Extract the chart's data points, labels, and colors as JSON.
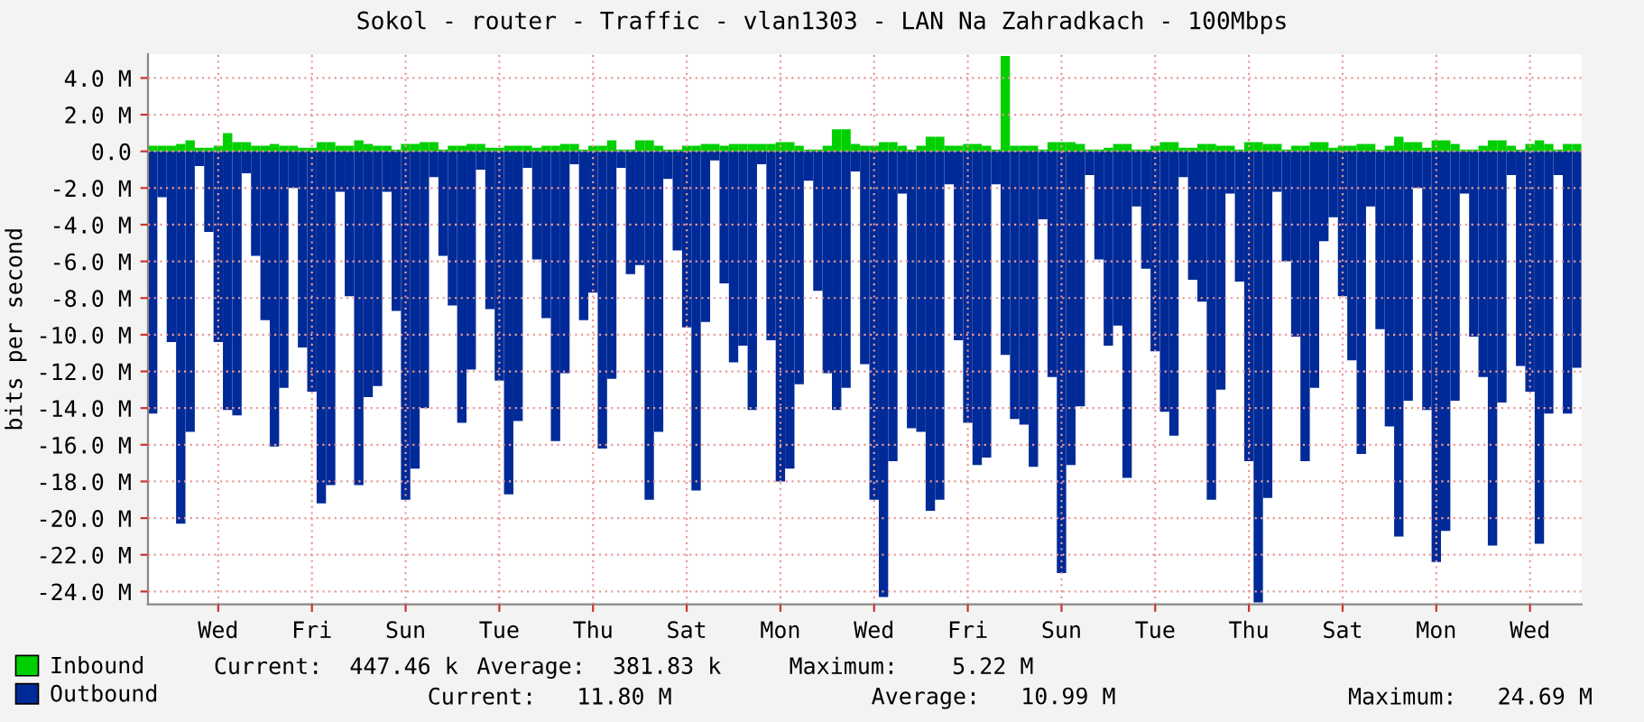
{
  "chart_data": {
    "type": "bar",
    "stacked": true,
    "title": "Sokol - router - Traffic - vlan1303 - LAN Na Zahradkach - 100Mbps",
    "ylabel": "bits per second",
    "categories": [
      null,
      null,
      null,
      null,
      null,
      null,
      null,
      "Wed",
      null,
      null,
      null,
      null,
      null,
      null,
      null,
      null,
      null,
      "Fri",
      null,
      null,
      null,
      null,
      null,
      null,
      null,
      null,
      null,
      "Sun",
      null,
      null,
      null,
      null,
      null,
      null,
      null,
      null,
      null,
      "Tue",
      null,
      null,
      null,
      null,
      null,
      null,
      null,
      null,
      null,
      "Thu",
      null,
      null,
      null,
      null,
      null,
      null,
      null,
      null,
      null,
      "Sat",
      null,
      null,
      null,
      null,
      null,
      null,
      null,
      null,
      null,
      "Mon",
      null,
      null,
      null,
      null,
      null,
      null,
      null,
      null,
      null,
      "Wed",
      null,
      null,
      null,
      null,
      null,
      null,
      null,
      null,
      null,
      "Fri",
      null,
      null,
      null,
      null,
      null,
      null,
      null,
      null,
      null,
      "Sun",
      null,
      null,
      null,
      null,
      null,
      null,
      null,
      null,
      null,
      "Tue",
      null,
      null,
      null,
      null,
      null,
      null,
      null,
      null,
      null,
      "Thu",
      null,
      null,
      null,
      null,
      null,
      null,
      null,
      null,
      null,
      "Sat",
      null,
      null,
      null,
      null,
      null,
      null,
      null,
      null,
      null,
      "Mon",
      null,
      null,
      null,
      null,
      null,
      null,
      null,
      null,
      null,
      "Wed",
      null,
      null,
      null,
      null,
      null
    ],
    "ylim": [
      -24.7,
      5.3
    ],
    "yticks": [
      {
        "value": 4,
        "label": "4.0 M"
      },
      {
        "value": 2,
        "label": "2.0 M"
      },
      {
        "value": 0,
        "label": "0.0"
      },
      {
        "value": -2,
        "label": "-2.0 M"
      },
      {
        "value": -4,
        "label": "-4.0 M"
      },
      {
        "value": -6,
        "label": "-6.0 M"
      },
      {
        "value": -8,
        "label": "-8.0 M"
      },
      {
        "value": -10,
        "label": "-10.0 M"
      },
      {
        "value": -12,
        "label": "-12.0 M"
      },
      {
        "value": -14,
        "label": "-14.0 M"
      },
      {
        "value": -16,
        "label": "-16.0 M"
      },
      {
        "value": -18,
        "label": "-18.0 M"
      },
      {
        "value": -20,
        "label": "-20.0 M"
      },
      {
        "value": -22,
        "label": "-22.0 M"
      },
      {
        "value": -24,
        "label": "-24.0 M"
      }
    ],
    "grid": true,
    "legend": "bottom left",
    "annotations": [
      "Current:  447.46 k",
      "Average:  381.83 k",
      "Maximum:    5.22 M",
      "Current:   11.80 M",
      "Average:   10.99 M",
      "Maximum:   24.69 M"
    ],
    "series": [
      {
        "name": "Inbound",
        "color": "#00cf00",
        "values": [
          0.3,
          0.3,
          0.3,
          0.4,
          0.6,
          0.2,
          0.2,
          0.3,
          1.0,
          0.5,
          0.5,
          0.3,
          0.3,
          0.4,
          0.3,
          0.3,
          0.2,
          0.2,
          0.5,
          0.5,
          0.3,
          0.3,
          0.6,
          0.4,
          0.3,
          0.3,
          0.1,
          0.4,
          0.4,
          0.5,
          0.5,
          0.1,
          0.3,
          0.3,
          0.4,
          0.4,
          0.2,
          0.2,
          0.3,
          0.3,
          0.3,
          0.2,
          0.3,
          0.3,
          0.4,
          0.4,
          0.1,
          0.3,
          0.3,
          0.6,
          0.1,
          0.1,
          0.6,
          0.6,
          0.3,
          0.1,
          0.1,
          0.3,
          0.3,
          0.4,
          0.4,
          0.3,
          0.4,
          0.4,
          0.4,
          0.4,
          0.4,
          0.5,
          0.5,
          0.3,
          0.1,
          0.1,
          0.3,
          1.2,
          1.2,
          0.4,
          0.3,
          0.3,
          0.5,
          0.5,
          0.3,
          0.1,
          0.3,
          0.8,
          0.8,
          0.3,
          0.3,
          0.4,
          0.4,
          0.3,
          0.1,
          5.2,
          0.3,
          0.3,
          0.3,
          0.1,
          0.5,
          0.5,
          0.5,
          0.4,
          0.1,
          0.1,
          0.2,
          0.4,
          0.4,
          0.1,
          0.1,
          0.3,
          0.5,
          0.5,
          0.2,
          0.2,
          0.4,
          0.4,
          0.3,
          0.3,
          0.1,
          0.5,
          0.5,
          0.4,
          0.4,
          0.1,
          0.3,
          0.3,
          0.5,
          0.5,
          0.2,
          0.3,
          0.3,
          0.4,
          0.4,
          0.1,
          0.3,
          0.8,
          0.5,
          0.5,
          0.2,
          0.6,
          0.6,
          0.4,
          0.1,
          0.1,
          0.3,
          0.6,
          0.6,
          0.3,
          0.1,
          0.4,
          0.6,
          0.4,
          0.1,
          0.4,
          0.4
        ]
      },
      {
        "name": "Outbound",
        "color": "#002a97",
        "values": [
          -14.3,
          -2.5,
          -10.4,
          -20.3,
          -15.3,
          -0.8,
          -4.4,
          -10.4,
          -14.1,
          -14.4,
          -1.2,
          -5.7,
          -9.2,
          -16.1,
          -12.9,
          -2.0,
          -10.7,
          -13.1,
          -19.2,
          -18.2,
          -2.2,
          -7.9,
          -18.2,
          -13.4,
          -12.8,
          -2.2,
          -8.7,
          -19.0,
          -17.3,
          -14.0,
          -1.4,
          -5.7,
          -8.4,
          -14.8,
          -11.9,
          -1.0,
          -8.6,
          -12.5,
          -18.7,
          -14.7,
          -0.9,
          -5.9,
          -9.1,
          -15.8,
          -12.1,
          -0.7,
          -9.2,
          -7.7,
          -16.2,
          -12.4,
          -0.9,
          -6.7,
          -6.2,
          -19.0,
          -15.3,
          -1.5,
          -5.4,
          -9.6,
          -18.5,
          -9.3,
          -0.5,
          -7.2,
          -11.5,
          -10.6,
          -14.1,
          -0.7,
          -10.3,
          -18.0,
          -17.3,
          -12.7,
          -1.6,
          -7.6,
          -12.1,
          -14.1,
          -12.9,
          -1.1,
          -11.6,
          -19.0,
          -24.3,
          -16.9,
          -2.3,
          -15.1,
          -15.3,
          -19.6,
          -19.0,
          -1.8,
          -10.3,
          -14.8,
          -17.1,
          -16.7,
          -1.8,
          -11.1,
          -14.6,
          -14.9,
          -17.2,
          -3.7,
          -12.3,
          -23.0,
          -17.1,
          -13.9,
          -1.3,
          -5.9,
          -10.6,
          -9.5,
          -17.8,
          -3.0,
          -6.4,
          -10.9,
          -14.2,
          -15.5,
          -1.4,
          -7.0,
          -8.2,
          -19.0,
          -13.0,
          -2.3,
          -7.1,
          -16.9,
          -24.6,
          -18.9,
          -2.2,
          -6.0,
          -10.1,
          -16.9,
          -12.9,
          -4.9,
          -3.6,
          -7.9,
          -11.4,
          -16.5,
          -3.0,
          -9.7,
          -15.0,
          -21.0,
          -13.6,
          -2.0,
          -14.1,
          -22.4,
          -20.7,
          -13.6,
          -2.3,
          -10.1,
          -12.3,
          -21.5,
          -13.7,
          -1.3,
          -11.7,
          -13.1,
          -21.4,
          -14.3,
          -1.3,
          -14.3,
          -11.8
        ]
      }
    ]
  }
}
